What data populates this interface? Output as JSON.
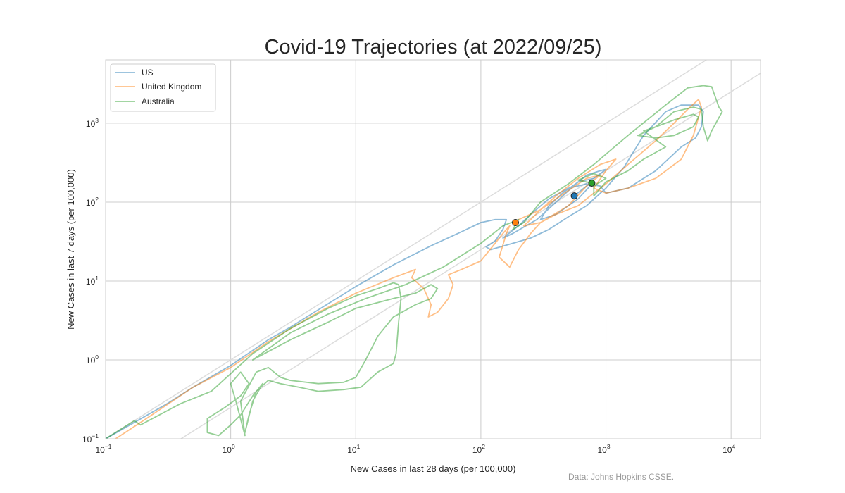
{
  "chart_data": {
    "type": "line",
    "title": "Covid-19 Trajectories (at 2022/09/25)",
    "xlabel": "New Cases in last 28 days (per 100,000)",
    "ylabel": "New Cases in last 7 days (per 100,000)",
    "xscale": "log",
    "yscale": "log",
    "xlim": [
      0.1,
      17200
    ],
    "ylim": [
      0.1,
      6350
    ],
    "x_tick_exponents": [
      -1,
      0,
      1,
      2,
      3,
      4
    ],
    "y_tick_exponents": [
      -1,
      0,
      1,
      2,
      3
    ],
    "grid": true,
    "legend_placement": "top-left",
    "reference_lines": [
      {
        "relation": "y = x",
        "color": "#dcdcdc"
      },
      {
        "relation": "y = x / 4",
        "color": "#dcdcdc"
      }
    ],
    "series": [
      {
        "name": "US",
        "color": "#1f77b4",
        "last_point": [
          558,
          120
        ],
        "points": [
          [
            0.1,
            0.1
          ],
          [
            0.18,
            0.17
          ],
          [
            0.3,
            0.27
          ],
          [
            0.5,
            0.45
          ],
          [
            1,
            0.85
          ],
          [
            2,
            1.8
          ],
          [
            3,
            2.6
          ],
          [
            5,
            4.3
          ],
          [
            10,
            8.5
          ],
          [
            20,
            16
          ],
          [
            40,
            28
          ],
          [
            70,
            42
          ],
          [
            100,
            55
          ],
          [
            130,
            60
          ],
          [
            160,
            60
          ],
          [
            150,
            45
          ],
          [
            130,
            32
          ],
          [
            110,
            27
          ],
          [
            120,
            25
          ],
          [
            180,
            30
          ],
          [
            250,
            35
          ],
          [
            350,
            45
          ],
          [
            500,
            65
          ],
          [
            700,
            90
          ],
          [
            1000,
            150
          ],
          [
            1400,
            280
          ],
          [
            2000,
            700
          ],
          [
            3000,
            1400
          ],
          [
            4000,
            1700
          ],
          [
            5500,
            1700
          ],
          [
            6000,
            1400
          ],
          [
            5800,
            900
          ],
          [
            5200,
            650
          ],
          [
            4000,
            500
          ],
          [
            2500,
            250
          ],
          [
            1500,
            150
          ],
          [
            1000,
            130
          ],
          [
            900,
            160
          ],
          [
            700,
            170
          ],
          [
            500,
            150
          ],
          [
            350,
            110
          ],
          [
            250,
            70
          ],
          [
            200,
            50
          ],
          [
            150,
            35
          ],
          [
            180,
            40
          ],
          [
            280,
            60
          ],
          [
            400,
            100
          ],
          [
            550,
            160
          ],
          [
            700,
            220
          ],
          [
            900,
            250
          ],
          [
            1000,
            260
          ],
          [
            800,
            200
          ],
          [
            600,
            180
          ],
          [
            450,
            130
          ],
          [
            350,
            90
          ],
          [
            300,
            60
          ],
          [
            400,
            70
          ],
          [
            600,
            110
          ],
          [
            800,
            180
          ],
          [
            700,
            160
          ],
          [
            558,
            120
          ]
        ]
      },
      {
        "name": "United Kingdom",
        "color": "#ff7f0e",
        "last_point": [
          189,
          55
        ],
        "points": [
          [
            0.12,
            0.1
          ],
          [
            0.2,
            0.17
          ],
          [
            0.5,
            0.45
          ],
          [
            1,
            0.8
          ],
          [
            2,
            1.7
          ],
          [
            5,
            4
          ],
          [
            10,
            7
          ],
          [
            20,
            11
          ],
          [
            30,
            14
          ],
          [
            28,
            11
          ],
          [
            35,
            8
          ],
          [
            40,
            5
          ],
          [
            38,
            3.5
          ],
          [
            45,
            4
          ],
          [
            55,
            6
          ],
          [
            60,
            9
          ],
          [
            55,
            12
          ],
          [
            70,
            14
          ],
          [
            100,
            18
          ],
          [
            130,
            30
          ],
          [
            150,
            40
          ],
          [
            170,
            50
          ],
          [
            160,
            40
          ],
          [
            140,
            20
          ],
          [
            170,
            15
          ],
          [
            200,
            25
          ],
          [
            250,
            40
          ],
          [
            300,
            55
          ],
          [
            400,
            70
          ],
          [
            600,
            90
          ],
          [
            800,
            130
          ],
          [
            1000,
            170
          ],
          [
            1500,
            300
          ],
          [
            2500,
            600
          ],
          [
            3500,
            1000
          ],
          [
            4500,
            1500
          ],
          [
            5500,
            2000
          ],
          [
            5800,
            1600
          ],
          [
            5000,
            700
          ],
          [
            4000,
            350
          ],
          [
            2500,
            200
          ],
          [
            1500,
            150
          ],
          [
            1000,
            130
          ],
          [
            800,
            150
          ],
          [
            1000,
            250
          ],
          [
            1200,
            350
          ],
          [
            900,
            300
          ],
          [
            600,
            200
          ],
          [
            400,
            120
          ],
          [
            300,
            80
          ],
          [
            250,
            60
          ],
          [
            220,
            50
          ],
          [
            300,
            55
          ],
          [
            500,
            90
          ],
          [
            700,
            160
          ],
          [
            900,
            220
          ],
          [
            700,
            200
          ],
          [
            500,
            140
          ],
          [
            300,
            80
          ],
          [
            200,
            60
          ],
          [
            189,
            55
          ]
        ]
      },
      {
        "name": "Australia",
        "color": "#2ca02c",
        "last_point": [
          771,
          174
        ],
        "points": [
          [
            0.1,
            0.1
          ],
          [
            0.17,
            0.17
          ],
          [
            0.19,
            0.15
          ],
          [
            0.4,
            0.28
          ],
          [
            0.7,
            0.4
          ],
          [
            1.5,
            1.2
          ],
          [
            3,
            2.5
          ],
          [
            6,
            4.5
          ],
          [
            10,
            6.5
          ],
          [
            15,
            8
          ],
          [
            20,
            9.5
          ],
          [
            22,
            9
          ],
          [
            23,
            6
          ],
          [
            22,
            3
          ],
          [
            21,
            1.2
          ],
          [
            20,
            0.9
          ],
          [
            15,
            0.7
          ],
          [
            11,
            0.45
          ],
          [
            8,
            0.42
          ],
          [
            5,
            0.4
          ],
          [
            3.5,
            0.45
          ],
          [
            2.5,
            0.5
          ],
          [
            2,
            0.55
          ],
          [
            1.6,
            0.4
          ],
          [
            1.4,
            0.2
          ],
          [
            1.3,
            0.12
          ],
          [
            1.5,
            0.3
          ],
          [
            1.8,
            0.5
          ],
          [
            1.5,
            0.35
          ],
          [
            1.2,
            0.2
          ],
          [
            1,
            0.15
          ],
          [
            0.8,
            0.11
          ],
          [
            0.65,
            0.12
          ],
          [
            0.65,
            0.18
          ],
          [
            0.9,
            0.25
          ],
          [
            1.2,
            0.35
          ],
          [
            1.4,
            0.5
          ],
          [
            1.2,
            0.7
          ],
          [
            1,
            0.5
          ],
          [
            1.1,
            0.3
          ],
          [
            1.3,
            0.11
          ],
          [
            1.2,
            0.3
          ],
          [
            1.6,
            0.7
          ],
          [
            2,
            0.8
          ],
          [
            2.5,
            0.6
          ],
          [
            3,
            0.55
          ],
          [
            5,
            0.5
          ],
          [
            8,
            0.52
          ],
          [
            10,
            0.6
          ],
          [
            12,
            1
          ],
          [
            15,
            2
          ],
          [
            20,
            3.5
          ],
          [
            30,
            5
          ],
          [
            40,
            6
          ],
          [
            45,
            8
          ],
          [
            40,
            9
          ],
          [
            30,
            7
          ],
          [
            20,
            6
          ],
          [
            10,
            4.5
          ],
          [
            6,
            3
          ],
          [
            3,
            1.8
          ],
          [
            1.5,
            1
          ],
          [
            3,
            2.2
          ],
          [
            6,
            3.8
          ],
          [
            12,
            6
          ],
          [
            25,
            9
          ],
          [
            50,
            15
          ],
          [
            100,
            30
          ],
          [
            150,
            50
          ],
          [
            200,
            60
          ],
          [
            180,
            45
          ],
          [
            220,
            55
          ],
          [
            300,
            100
          ],
          [
            500,
            170
          ],
          [
            800,
            300
          ],
          [
            1500,
            700
          ],
          [
            3000,
            1700
          ],
          [
            4500,
            2800
          ],
          [
            6000,
            3000
          ],
          [
            7000,
            2900
          ],
          [
            8000,
            1600
          ],
          [
            8500,
            1400
          ],
          [
            7000,
            800
          ],
          [
            6500,
            600
          ],
          [
            6000,
            900
          ],
          [
            5800,
            1500
          ],
          [
            5000,
            1600
          ],
          [
            3500,
            1400
          ],
          [
            2500,
            900
          ],
          [
            1800,
            700
          ],
          [
            2500,
            650
          ],
          [
            3500,
            700
          ],
          [
            5000,
            900
          ],
          [
            5500,
            1200
          ],
          [
            5000,
            1300
          ],
          [
            3500,
            1100
          ],
          [
            2500,
            900
          ],
          [
            2000,
            800
          ],
          [
            3000,
            500
          ],
          [
            2000,
            350
          ],
          [
            1500,
            250
          ],
          [
            1000,
            180
          ],
          [
            800,
            120
          ],
          [
            800,
            160
          ],
          [
            1000,
            200
          ],
          [
            800,
            230
          ],
          [
            600,
            190
          ],
          [
            771,
            174
          ]
        ]
      }
    ],
    "source_note": "Data: Johns Hopkins CSSE."
  }
}
